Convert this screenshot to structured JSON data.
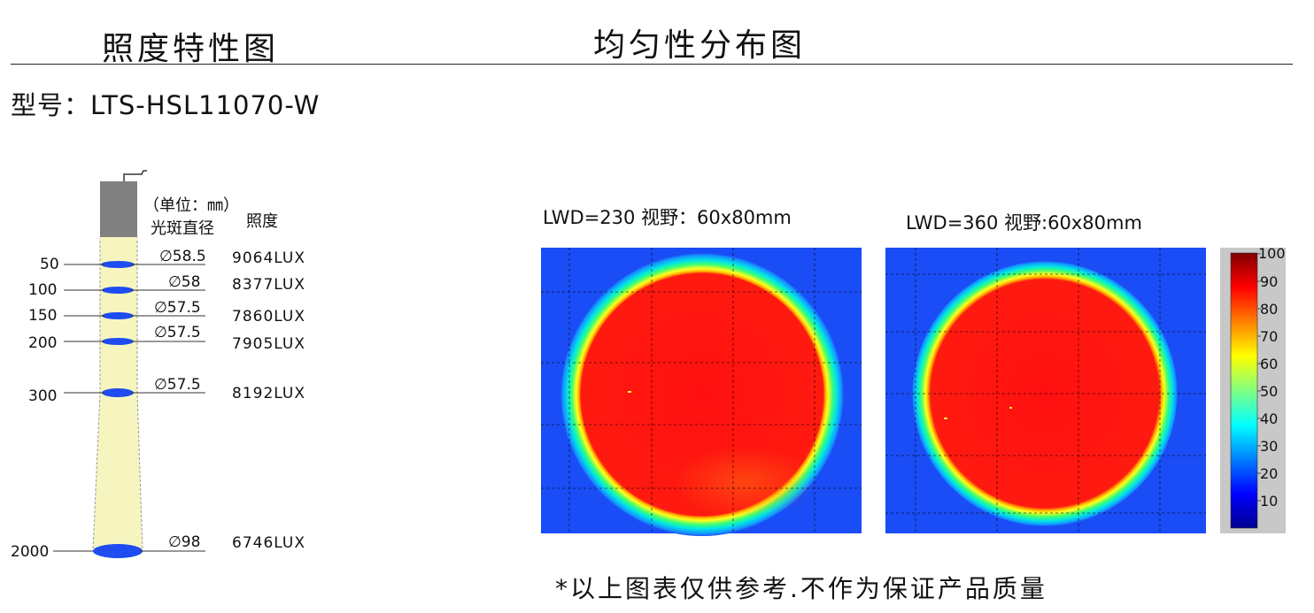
{
  "headers": {
    "left_title": "照度特性图",
    "right_title": "均匀性分布图"
  },
  "model": "型号：LTS-HSL11070-W",
  "diagram": {
    "unit_note": "（单位：㎜）",
    "spot_label": "光斑直径",
    "illum_label": "照度",
    "rows": [
      {
        "distance": "50",
        "diameter": "∅58.5",
        "lux": "9064LUX"
      },
      {
        "distance": "100",
        "diameter": "∅58",
        "lux": "8377LUX"
      },
      {
        "distance": "150",
        "diameter": "∅57.5",
        "lux": "7860LUX"
      },
      {
        "distance": "200",
        "diameter": "∅57.5",
        "lux": "7905LUX"
      },
      {
        "distance": "300",
        "diameter": "∅57.5",
        "lux": "8192LUX"
      },
      {
        "distance": "2000",
        "diameter": "∅98",
        "lux": "6746LUX"
      }
    ]
  },
  "maps": [
    {
      "caption": "LWD=230   视野：60x80mm"
    },
    {
      "caption": "LWD=360   视野:60x80mm"
    }
  ],
  "colorbar": {
    "ticks": [
      "100",
      "90",
      "80",
      "70",
      "60",
      "50",
      "40",
      "30",
      "20",
      "10"
    ]
  },
  "colors": {
    "beam_fill": "#f6f5c0",
    "spot": "#1e4cf0",
    "heat_red": "#ff1010",
    "heat_bg": "#1a4df5"
  },
  "footer": "*以上图表仅供参考.不作为保证产品质量"
}
